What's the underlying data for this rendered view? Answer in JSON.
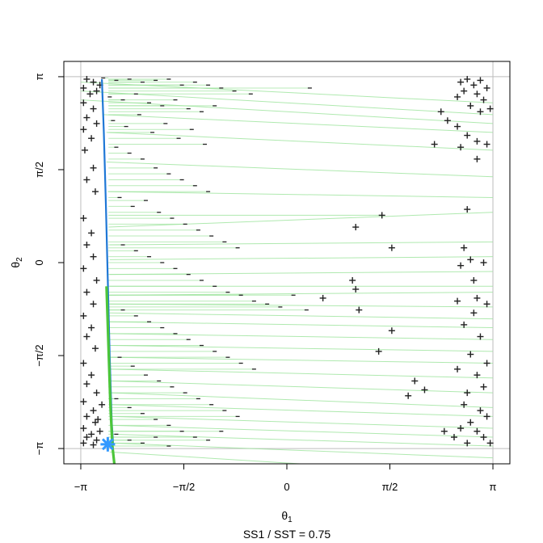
{
  "chart_data": {
    "type": "scatter",
    "xlabel": {
      "symbol": "θ",
      "sub": "1"
    },
    "ylabel": {
      "symbol": "θ",
      "sub": "2"
    },
    "caption": "SS1 / SST = 0.75",
    "xlim": [
      -3.4,
      3.4
    ],
    "ylim": [
      -3.4,
      3.4
    ],
    "x_ticks": [
      {
        "value": -3.14159,
        "label": "−π"
      },
      {
        "value": -1.5708,
        "label": "−π/2"
      },
      {
        "value": 0,
        "label": "0"
      },
      {
        "value": 1.5708,
        "label": "π/2"
      },
      {
        "value": 3.14159,
        "label": "π"
      }
    ],
    "y_ticks": [
      {
        "value": -3.14159,
        "label": "−π"
      },
      {
        "value": -1.5708,
        "label": "−π/2"
      },
      {
        "value": 0,
        "label": "0"
      },
      {
        "value": 1.5708,
        "label": "π/2"
      },
      {
        "value": 3.14159,
        "label": "π"
      }
    ],
    "reference_lines": [
      -3.14159,
      3.14159
    ],
    "colors": {
      "residual": "#9be39b",
      "principal_curve": "#1f78d6",
      "projection_curve": "#4cc63a",
      "marker": "#222222",
      "star": "#3399ff",
      "reference": "#bdbdbd"
    },
    "principal_curve": [
      [
        -2.82,
        3.1
      ],
      [
        -2.79,
        2.2
      ],
      [
        -2.76,
        1.0
      ],
      [
        -2.73,
        -0.3
      ],
      [
        -2.7,
        -1.6
      ],
      [
        -2.67,
        -2.7
      ],
      [
        -2.65,
        -3.05
      ]
    ],
    "projection_curve": [
      [
        -2.75,
        -0.4
      ],
      [
        -2.72,
        -1.4
      ],
      [
        -2.69,
        -2.4
      ],
      [
        -2.66,
        -3.1
      ],
      [
        -2.63,
        -3.4
      ]
    ],
    "star_point": [
      -2.73,
      -3.07
    ],
    "plus_points": [
      [
        -3.05,
        3.1
      ],
      [
        -2.95,
        3.05
      ],
      [
        -3.1,
        2.95
      ],
      [
        -2.9,
        2.9
      ],
      [
        -3.0,
        2.85
      ],
      [
        -2.85,
        3.0
      ],
      [
        -3.1,
        2.7
      ],
      [
        -2.95,
        2.6
      ],
      [
        -3.05,
        2.45
      ],
      [
        -2.9,
        2.35
      ],
      [
        -3.1,
        2.25
      ],
      [
        -2.98,
        2.1
      ],
      [
        -3.08,
        1.9
      ],
      [
        -2.95,
        1.6
      ],
      [
        -3.05,
        1.4
      ],
      [
        -2.92,
        1.2
      ],
      [
        -3.1,
        0.75
      ],
      [
        -2.98,
        0.5
      ],
      [
        -3.05,
        0.3
      ],
      [
        -2.95,
        0.1
      ],
      [
        -3.1,
        -0.1
      ],
      [
        -2.9,
        -0.3
      ],
      [
        -3.05,
        -0.5
      ],
      [
        -2.95,
        -0.7
      ],
      [
        -3.1,
        -0.9
      ],
      [
        -2.98,
        -1.1
      ],
      [
        -3.05,
        -1.25
      ],
      [
        -2.92,
        -1.45
      ],
      [
        -3.1,
        -1.7
      ],
      [
        -2.98,
        -1.9
      ],
      [
        -3.05,
        -2.05
      ],
      [
        -2.9,
        -2.2
      ],
      [
        -3.1,
        -2.35
      ],
      [
        -2.95,
        -2.5
      ],
      [
        -3.05,
        -2.6
      ],
      [
        -2.92,
        -2.7
      ],
      [
        -3.1,
        -2.8
      ],
      [
        -2.98,
        -2.9
      ],
      [
        -3.05,
        -2.95
      ],
      [
        -2.9,
        -3.0
      ],
      [
        -3.1,
        -3.05
      ],
      [
        -2.95,
        -3.08
      ],
      [
        -2.85,
        -2.85
      ],
      [
        -2.88,
        -2.65
      ],
      [
        -2.82,
        -2.4
      ],
      [
        2.65,
        3.05
      ],
      [
        2.75,
        3.1
      ],
      [
        2.85,
        3.0
      ],
      [
        2.95,
        3.08
      ],
      [
        3.05,
        2.95
      ],
      [
        2.7,
        2.9
      ],
      [
        2.9,
        2.85
      ],
      [
        3.0,
        2.75
      ],
      [
        2.6,
        2.8
      ],
      [
        2.8,
        2.65
      ],
      [
        3.1,
        2.6
      ],
      [
        2.95,
        2.55
      ],
      [
        2.35,
        2.55
      ],
      [
        2.45,
        2.4
      ],
      [
        2.6,
        2.3
      ],
      [
        2.75,
        2.15
      ],
      [
        2.9,
        2.05
      ],
      [
        3.05,
        2.0
      ],
      [
        2.25,
        2.0
      ],
      [
        2.65,
        1.95
      ],
      [
        2.9,
        1.75
      ],
      [
        1.45,
        0.8
      ],
      [
        2.75,
        0.9
      ],
      [
        1.05,
        0.6
      ],
      [
        1.6,
        0.25
      ],
      [
        2.7,
        0.25
      ],
      [
        2.8,
        0.05
      ],
      [
        2.65,
        -0.05
      ],
      [
        3.0,
        0.0
      ],
      [
        2.85,
        -0.3
      ],
      [
        1.0,
        -0.3
      ],
      [
        2.9,
        -0.6
      ],
      [
        1.05,
        -0.45
      ],
      [
        0.55,
        -0.6
      ],
      [
        2.6,
        -0.65
      ],
      [
        3.05,
        -0.7
      ],
      [
        1.1,
        -0.8
      ],
      [
        2.85,
        -0.85
      ],
      [
        2.7,
        -1.05
      ],
      [
        1.6,
        -1.15
      ],
      [
        2.95,
        -1.25
      ],
      [
        1.4,
        -1.5
      ],
      [
        2.8,
        -1.55
      ],
      [
        3.05,
        -1.7
      ],
      [
        2.6,
        -1.8
      ],
      [
        2.9,
        -1.9
      ],
      [
        3.0,
        -2.1
      ],
      [
        2.75,
        -2.2
      ],
      [
        1.95,
        -2.0
      ],
      [
        2.1,
        -2.15
      ],
      [
        1.85,
        -2.25
      ],
      [
        2.7,
        -2.4
      ],
      [
        2.95,
        -2.5
      ],
      [
        3.05,
        -2.6
      ],
      [
        2.8,
        -2.7
      ],
      [
        2.65,
        -2.8
      ],
      [
        2.9,
        -2.85
      ],
      [
        2.4,
        -2.85
      ],
      [
        2.55,
        -2.95
      ],
      [
        3.0,
        -2.95
      ],
      [
        2.75,
        -3.05
      ],
      [
        3.1,
        -3.05
      ]
    ],
    "minus_points": [
      [
        -2.8,
        3.12
      ],
      [
        -2.6,
        3.08
      ],
      [
        -2.4,
        3.1
      ],
      [
        -2.2,
        3.05
      ],
      [
        -2.0,
        3.08
      ],
      [
        -1.8,
        3.1
      ],
      [
        -1.6,
        3.0
      ],
      [
        -1.4,
        3.05
      ],
      [
        -1.2,
        3.0
      ],
      [
        -1.0,
        2.95
      ],
      [
        -0.8,
        2.9
      ],
      [
        -0.55,
        2.85
      ],
      [
        0.35,
        2.95
      ],
      [
        -2.7,
        2.8
      ],
      [
        -2.5,
        2.75
      ],
      [
        -2.3,
        2.85
      ],
      [
        -2.1,
        2.7
      ],
      [
        -1.9,
        2.65
      ],
      [
        -1.7,
        2.75
      ],
      [
        -1.5,
        2.6
      ],
      [
        -1.3,
        2.55
      ],
      [
        -1.1,
        2.65
      ],
      [
        -2.65,
        2.4
      ],
      [
        -2.45,
        2.3
      ],
      [
        -2.25,
        2.5
      ],
      [
        -2.05,
        2.2
      ],
      [
        -1.85,
        2.35
      ],
      [
        -1.65,
        2.1
      ],
      [
        -1.45,
        2.25
      ],
      [
        -1.25,
        2.0
      ],
      [
        -2.6,
        1.95
      ],
      [
        -2.4,
        1.85
      ],
      [
        -2.2,
        1.75
      ],
      [
        -2.0,
        1.6
      ],
      [
        -1.8,
        1.5
      ],
      [
        -1.6,
        1.4
      ],
      [
        -1.4,
        1.3
      ],
      [
        -1.2,
        1.2
      ],
      [
        -2.55,
        1.1
      ],
      [
        -2.35,
        0.95
      ],
      [
        -2.15,
        1.05
      ],
      [
        -1.95,
        0.85
      ],
      [
        -1.75,
        0.75
      ],
      [
        -1.55,
        0.65
      ],
      [
        -1.35,
        0.55
      ],
      [
        -1.15,
        0.45
      ],
      [
        -0.95,
        0.35
      ],
      [
        -0.75,
        0.25
      ],
      [
        -2.5,
        0.3
      ],
      [
        -2.3,
        0.2
      ],
      [
        -2.1,
        0.1
      ],
      [
        -1.9,
        0.0
      ],
      [
        -1.7,
        -0.1
      ],
      [
        -1.5,
        -0.2
      ],
      [
        -1.3,
        -0.3
      ],
      [
        -1.1,
        -0.4
      ],
      [
        -0.9,
        -0.5
      ],
      [
        -0.7,
        -0.55
      ],
      [
        -0.5,
        -0.65
      ],
      [
        -0.3,
        -0.7
      ],
      [
        -0.1,
        -0.75
      ],
      [
        0.1,
        -0.55
      ],
      [
        0.3,
        -0.8
      ],
      [
        -2.5,
        -0.8
      ],
      [
        -2.3,
        -0.9
      ],
      [
        -2.1,
        -1.0
      ],
      [
        -1.9,
        -1.1
      ],
      [
        -1.7,
        -1.2
      ],
      [
        -1.5,
        -1.3
      ],
      [
        -1.3,
        -1.4
      ],
      [
        -1.1,
        -1.5
      ],
      [
        -0.9,
        -1.6
      ],
      [
        -0.7,
        -1.7
      ],
      [
        -0.5,
        -1.8
      ],
      [
        -2.55,
        -1.6
      ],
      [
        -2.35,
        -1.75
      ],
      [
        -2.15,
        -1.9
      ],
      [
        -1.95,
        -2.0
      ],
      [
        -1.75,
        -2.1
      ],
      [
        -1.55,
        -2.2
      ],
      [
        -1.35,
        -2.3
      ],
      [
        -1.15,
        -2.4
      ],
      [
        -0.95,
        -2.5
      ],
      [
        -0.75,
        -2.6
      ],
      [
        -2.6,
        -2.3
      ],
      [
        -2.4,
        -2.45
      ],
      [
        -2.2,
        -2.55
      ],
      [
        -2.0,
        -2.65
      ],
      [
        -1.8,
        -2.75
      ],
      [
        -1.6,
        -2.85
      ],
      [
        -1.4,
        -2.95
      ],
      [
        -1.2,
        -3.0
      ],
      [
        -1.0,
        -2.85
      ],
      [
        -2.6,
        -2.9
      ],
      [
        -2.4,
        -3.0
      ],
      [
        -2.2,
        -3.05
      ],
      [
        -2.0,
        -2.95
      ],
      [
        -1.8,
        -3.1
      ]
    ],
    "residual_segments": [
      [
        [
          -3.14,
          3.05
        ],
        [
          3.14,
          2.7
        ]
      ],
      [
        [
          -3.14,
          2.9
        ],
        [
          3.14,
          2.5
        ]
      ],
      [
        [
          -3.14,
          2.75
        ],
        [
          3.14,
          2.35
        ]
      ],
      [
        [
          -2.8,
          2.5
        ],
        [
          3.14,
          2.2
        ]
      ],
      [
        [
          -2.75,
          2.2
        ],
        [
          3.14,
          1.9
        ]
      ],
      [
        [
          -2.75,
          1.7
        ],
        [
          3.14,
          1.45
        ]
      ],
      [
        [
          -2.73,
          1.2
        ],
        [
          3.14,
          1.1
        ]
      ],
      [
        [
          -2.72,
          0.8
        ],
        [
          1.45,
          0.8
        ]
      ],
      [
        [
          -2.72,
          0.6
        ],
        [
          3.14,
          0.85
        ]
      ],
      [
        [
          -2.7,
          0.3
        ],
        [
          3.14,
          0.35
        ]
      ],
      [
        [
          -2.7,
          0.05
        ],
        [
          3.14,
          0.1
        ]
      ],
      [
        [
          -2.7,
          -0.2
        ],
        [
          3.14,
          -0.15
        ]
      ],
      [
        [
          -2.7,
          -0.4
        ],
        [
          3.14,
          -0.4
        ]
      ],
      [
        [
          -2.7,
          -0.55
        ],
        [
          3.14,
          -0.5
        ]
      ],
      [
        [
          -2.7,
          -0.7
        ],
        [
          3.14,
          -0.75
        ]
      ],
      [
        [
          -2.7,
          -0.85
        ],
        [
          3.14,
          -0.95
        ]
      ],
      [
        [
          -2.7,
          -1.0
        ],
        [
          3.14,
          -1.1
        ]
      ],
      [
        [
          -2.7,
          -1.2
        ],
        [
          3.14,
          -1.3
        ]
      ],
      [
        [
          -2.7,
          -1.4
        ],
        [
          3.14,
          -1.5
        ]
      ],
      [
        [
          -2.7,
          -1.6
        ],
        [
          3.14,
          -1.7
        ]
      ],
      [
        [
          -2.7,
          -1.8
        ],
        [
          3.14,
          -1.95
        ]
      ],
      [
        [
          -2.68,
          -2.0
        ],
        [
          3.14,
          -2.2
        ]
      ],
      [
        [
          -2.68,
          -2.2
        ],
        [
          3.14,
          -2.45
        ]
      ],
      [
        [
          -2.68,
          -2.4
        ],
        [
          3.14,
          -2.6
        ]
      ],
      [
        [
          -2.67,
          -2.6
        ],
        [
          3.14,
          -2.8
        ]
      ],
      [
        [
          -2.67,
          -2.75
        ],
        [
          3.14,
          -2.95
        ]
      ],
      [
        [
          -2.66,
          -2.9
        ],
        [
          3.14,
          -3.1
        ]
      ],
      [
        [
          -2.66,
          -3.05
        ],
        [
          3.14,
          -3.3
        ]
      ],
      [
        [
          -2.7,
          -3.2
        ],
        [
          0.2,
          -3.4
        ]
      ]
    ]
  }
}
